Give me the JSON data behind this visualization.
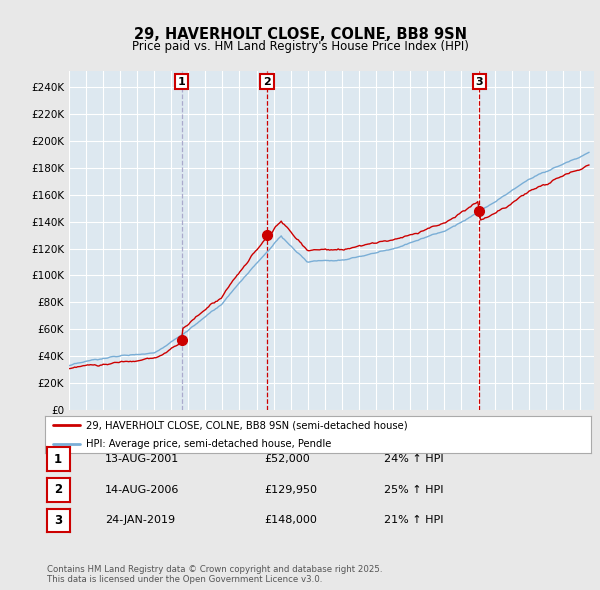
{
  "title": "29, HAVERHOLT CLOSE, COLNE, BB8 9SN",
  "subtitle": "Price paid vs. HM Land Registry's House Price Index (HPI)",
  "legend_line1": "29, HAVERHOLT CLOSE, COLNE, BB8 9SN (semi-detached house)",
  "legend_line2": "HPI: Average price, semi-detached house, Pendle",
  "sale_color": "#cc0000",
  "hpi_color": "#7aaed6",
  "vline1_color": "#aaaacc",
  "vline23_color": "#cc0000",
  "plot_bg_color": "#dde8f0",
  "fig_bg_color": "#e8e8e8",
  "grid_color": "#ffffff",
  "yticks": [
    0,
    20000,
    40000,
    60000,
    80000,
    100000,
    120000,
    140000,
    160000,
    180000,
    200000,
    220000,
    240000
  ],
  "sale_years": [
    2001.62,
    2006.62,
    2019.08
  ],
  "sale_prices": [
    52000,
    129950,
    148000
  ],
  "sale_labels": [
    "1",
    "2",
    "3"
  ],
  "footer_line1": "Contains HM Land Registry data © Crown copyright and database right 2025.",
  "footer_line2": "This data is licensed under the Open Government Licence v3.0.",
  "table_rows": [
    {
      "label": "1",
      "date": "13-AUG-2001",
      "price": "£52,000",
      "hpi": "24% ↑ HPI"
    },
    {
      "label": "2",
      "date": "14-AUG-2006",
      "price": "£129,950",
      "hpi": "25% ↑ HPI"
    },
    {
      "label": "3",
      "date": "24-JAN-2019",
      "price": "£148,000",
      "hpi": "21% ↑ HPI"
    }
  ]
}
